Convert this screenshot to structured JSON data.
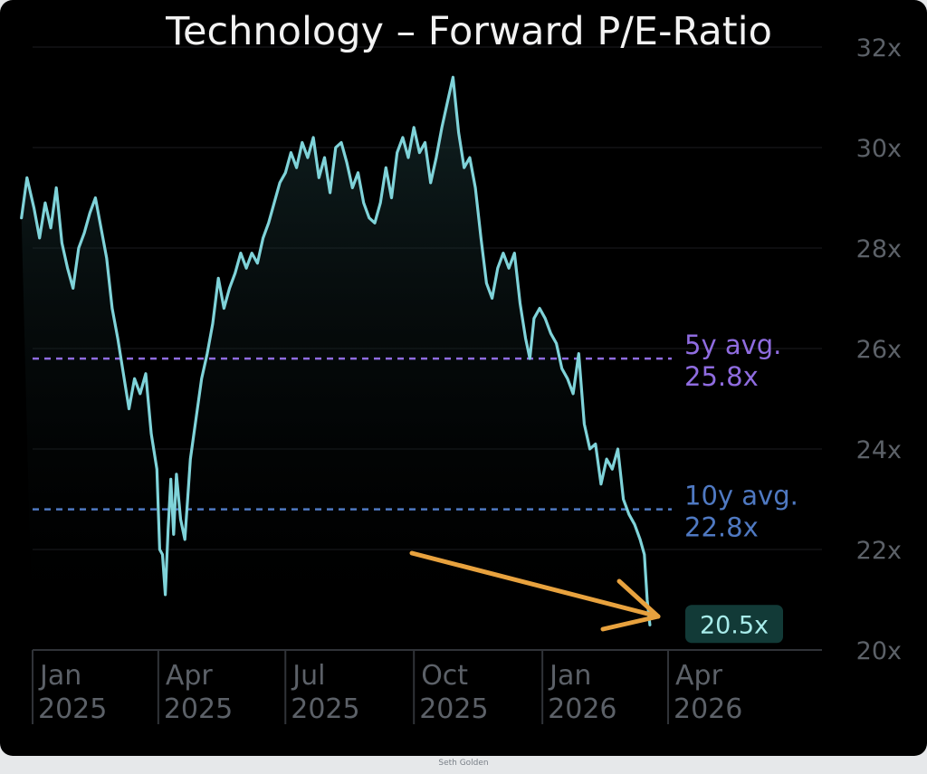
{
  "credit": "Seth Golden",
  "chart_data": {
    "type": "line",
    "title": "Technology – Forward P/E-Ratio",
    "xlabel": "",
    "ylabel": "",
    "ylim": [
      20,
      32
    ],
    "y_ticks": [
      {
        "value": 20,
        "label": "20x"
      },
      {
        "value": 22,
        "label": "22x"
      },
      {
        "value": 24,
        "label": "24x"
      },
      {
        "value": 26,
        "label": "26x"
      },
      {
        "value": 28,
        "label": "28x"
      },
      {
        "value": 30,
        "label": "30x"
      },
      {
        "value": 32,
        "label": "32x"
      }
    ],
    "x_range": [
      "2025-01-01",
      "2026-05-01"
    ],
    "x_ticks": [
      {
        "date": "2025-01-01",
        "month": "Jan",
        "year": "2025"
      },
      {
        "date": "2025-04-01",
        "month": "Apr",
        "year": "2025"
      },
      {
        "date": "2025-07-01",
        "month": "Jul",
        "year": "2025"
      },
      {
        "date": "2025-10-01",
        "month": "Oct",
        "year": "2025"
      },
      {
        "date": "2026-01-01",
        "month": "Jan",
        "year": "2026"
      },
      {
        "date": "2026-04-01",
        "month": "Apr",
        "year": "2026"
      }
    ],
    "grid": true,
    "colors": {
      "line": "#7fd3d9",
      "avg5": "#8f6ce0",
      "avg10": "#4f79c2",
      "arrow": "#e8a23e",
      "badge_bg": "#123a37",
      "badge_text": "#a8ecea",
      "tick_text": "#5c6168",
      "title_text": "#f2f2f2"
    },
    "reference_lines": [
      {
        "name": "5y avg.",
        "label": "25.8x",
        "value": 25.8
      },
      {
        "name": "10y avg.",
        "label": "22.8x",
        "value": 22.8
      }
    ],
    "last_value_label": "20.5x",
    "series": [
      {
        "points": [
          [
            "2024-12-24",
            28.6
          ],
          [
            "2024-12-28",
            29.4
          ],
          [
            "2025-01-02",
            28.8
          ],
          [
            "2025-01-06",
            28.2
          ],
          [
            "2025-01-10",
            28.9
          ],
          [
            "2025-01-14",
            28.4
          ],
          [
            "2025-01-18",
            29.2
          ],
          [
            "2025-01-22",
            28.1
          ],
          [
            "2025-01-26",
            27.6
          ],
          [
            "2025-01-30",
            27.2
          ],
          [
            "2025-02-03",
            28.0
          ],
          [
            "2025-02-07",
            28.3
          ],
          [
            "2025-02-11",
            28.7
          ],
          [
            "2025-02-15",
            29.0
          ],
          [
            "2025-02-19",
            28.4
          ],
          [
            "2025-02-23",
            27.8
          ],
          [
            "2025-02-27",
            26.8
          ],
          [
            "2025-03-03",
            26.2
          ],
          [
            "2025-03-07",
            25.5
          ],
          [
            "2025-03-11",
            24.8
          ],
          [
            "2025-03-15",
            25.4
          ],
          [
            "2025-03-19",
            25.1
          ],
          [
            "2025-03-23",
            25.5
          ],
          [
            "2025-03-27",
            24.3
          ],
          [
            "2025-03-31",
            23.6
          ],
          [
            "2025-04-02",
            22.0
          ],
          [
            "2025-04-04",
            21.9
          ],
          [
            "2025-04-06",
            21.1
          ],
          [
            "2025-04-08",
            22.4
          ],
          [
            "2025-04-10",
            23.4
          ],
          [
            "2025-04-12",
            22.3
          ],
          [
            "2025-04-14",
            23.5
          ],
          [
            "2025-04-17",
            22.6
          ],
          [
            "2025-04-20",
            22.2
          ],
          [
            "2025-04-24",
            23.8
          ],
          [
            "2025-04-28",
            24.6
          ],
          [
            "2025-05-02",
            25.4
          ],
          [
            "2025-05-06",
            25.9
          ],
          [
            "2025-05-10",
            26.5
          ],
          [
            "2025-05-14",
            27.4
          ],
          [
            "2025-05-18",
            26.8
          ],
          [
            "2025-05-22",
            27.2
          ],
          [
            "2025-05-26",
            27.5
          ],
          [
            "2025-05-30",
            27.9
          ],
          [
            "2025-06-03",
            27.6
          ],
          [
            "2025-06-07",
            27.9
          ],
          [
            "2025-06-11",
            27.7
          ],
          [
            "2025-06-15",
            28.2
          ],
          [
            "2025-06-19",
            28.5
          ],
          [
            "2025-06-23",
            28.9
          ],
          [
            "2025-06-27",
            29.3
          ],
          [
            "2025-07-01",
            29.5
          ],
          [
            "2025-07-05",
            29.9
          ],
          [
            "2025-07-09",
            29.6
          ],
          [
            "2025-07-13",
            30.1
          ],
          [
            "2025-07-17",
            29.8
          ],
          [
            "2025-07-21",
            30.2
          ],
          [
            "2025-07-25",
            29.4
          ],
          [
            "2025-07-29",
            29.8
          ],
          [
            "2025-08-02",
            29.1
          ],
          [
            "2025-08-06",
            30.0
          ],
          [
            "2025-08-10",
            30.1
          ],
          [
            "2025-08-14",
            29.7
          ],
          [
            "2025-08-18",
            29.2
          ],
          [
            "2025-08-22",
            29.5
          ],
          [
            "2025-08-26",
            28.9
          ],
          [
            "2025-08-30",
            28.6
          ],
          [
            "2025-09-03",
            28.5
          ],
          [
            "2025-09-07",
            28.9
          ],
          [
            "2025-09-11",
            29.6
          ],
          [
            "2025-09-15",
            29.0
          ],
          [
            "2025-09-19",
            29.9
          ],
          [
            "2025-09-23",
            30.2
          ],
          [
            "2025-09-27",
            29.8
          ],
          [
            "2025-10-01",
            30.4
          ],
          [
            "2025-10-05",
            29.9
          ],
          [
            "2025-10-09",
            30.1
          ],
          [
            "2025-10-13",
            29.3
          ],
          [
            "2025-10-17",
            29.8
          ],
          [
            "2025-10-21",
            30.4
          ],
          [
            "2025-10-25",
            30.9
          ],
          [
            "2025-10-29",
            31.4
          ],
          [
            "2025-11-02",
            30.3
          ],
          [
            "2025-11-06",
            29.6
          ],
          [
            "2025-11-10",
            29.8
          ],
          [
            "2025-11-14",
            29.2
          ],
          [
            "2025-11-18",
            28.2
          ],
          [
            "2025-11-22",
            27.3
          ],
          [
            "2025-11-26",
            27.0
          ],
          [
            "2025-11-30",
            27.6
          ],
          [
            "2025-12-04",
            27.9
          ],
          [
            "2025-12-08",
            27.6
          ],
          [
            "2025-12-12",
            27.9
          ],
          [
            "2025-12-16",
            26.9
          ],
          [
            "2025-12-20",
            26.2
          ],
          [
            "2025-12-23",
            25.8
          ],
          [
            "2025-12-26",
            26.6
          ],
          [
            "2025-12-30",
            26.8
          ],
          [
            "2026-01-03",
            26.6
          ],
          [
            "2026-01-07",
            26.3
          ],
          [
            "2026-01-11",
            26.1
          ],
          [
            "2026-01-15",
            25.6
          ],
          [
            "2026-01-19",
            25.4
          ],
          [
            "2026-01-23",
            25.1
          ],
          [
            "2026-01-27",
            25.9
          ],
          [
            "2026-01-31",
            24.5
          ],
          [
            "2026-02-04",
            24.0
          ],
          [
            "2026-02-08",
            24.1
          ],
          [
            "2026-02-12",
            23.3
          ],
          [
            "2026-02-16",
            23.8
          ],
          [
            "2026-02-20",
            23.6
          ],
          [
            "2026-02-24",
            24.0
          ],
          [
            "2026-02-28",
            23.0
          ],
          [
            "2026-03-04",
            22.7
          ],
          [
            "2026-03-08",
            22.5
          ],
          [
            "2026-03-12",
            22.2
          ],
          [
            "2026-03-15",
            21.9
          ],
          [
            "2026-03-17",
            21.0
          ],
          [
            "2026-03-19",
            20.5
          ]
        ]
      }
    ]
  }
}
